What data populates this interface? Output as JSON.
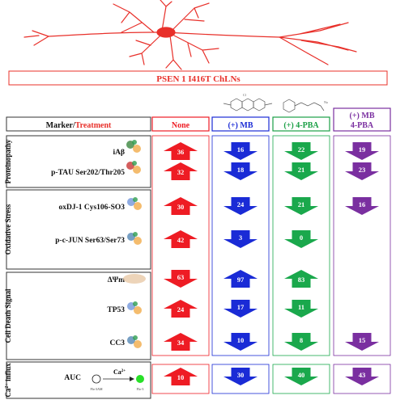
{
  "title": "PSEN 1 I416T ChLNs",
  "header": {
    "marker_label": "Marker/",
    "treatment_label": "Treatment",
    "columns": [
      {
        "label": "None",
        "color": "#ee1c24"
      },
      {
        "label": "(+) MB",
        "color": "#1a2bd6"
      },
      {
        "label": "(+) 4-PBA",
        "color": "#1a9f45"
      },
      {
        "label_line1": "(+) MB",
        "label_line2": "4-PBA",
        "color": "#7a2fa0"
      }
    ]
  },
  "colors": {
    "none": "#ee1c24",
    "mb": "#1a2bd6",
    "pba": "#1aa84c",
    "combo": "#7a2fa0",
    "neuron": "#e8302a"
  },
  "groups": [
    {
      "name": "Proteinopathy"
    },
    {
      "name": "Oxidative Stress"
    },
    {
      "name": "Cell Death Signal"
    },
    {
      "name": "Ca2+ influx",
      "base": "Ca",
      "sup": "2+",
      "rest": " influx"
    }
  ],
  "rows": [
    {
      "marker": "iAβ",
      "group": 0,
      "cells": [
        {
          "value": "36",
          "dir": "up"
        },
        {
          "value": "16",
          "dir": "down"
        },
        {
          "value": "22",
          "dir": "down"
        },
        {
          "value": "19",
          "dir": "down"
        }
      ]
    },
    {
      "marker": "p-TAU Ser202/Thr205",
      "group": 0,
      "cells": [
        {
          "value": "32",
          "dir": "up"
        },
        {
          "value": "18",
          "dir": "down"
        },
        {
          "value": "21",
          "dir": "down"
        },
        {
          "value": "23",
          "dir": "down"
        }
      ]
    },
    {
      "marker": "oxDJ-1 Cys106-SO3",
      "group": 1,
      "cells": [
        {
          "value": "30",
          "dir": "up"
        },
        {
          "value": "24",
          "dir": "down"
        },
        {
          "value": "21",
          "dir": "down"
        },
        {
          "value": "16",
          "dir": "down"
        }
      ]
    },
    {
      "marker": "p-c-JUN Ser63/Ser73",
      "group": 1,
      "cells": [
        {
          "value": "42",
          "dir": "up"
        },
        {
          "value": "3",
          "dir": "down"
        },
        {
          "value": "0",
          "dir": "down"
        },
        null
      ]
    },
    {
      "marker": "ΔΨm",
      "group": 2,
      "cells": [
        {
          "value": "63",
          "dir": "down"
        },
        {
          "value": "97",
          "dir": "up"
        },
        {
          "value": "83",
          "dir": "up"
        },
        null
      ]
    },
    {
      "marker": "TP53",
      "group": 2,
      "cells": [
        {
          "value": "24",
          "dir": "up"
        },
        {
          "value": "17",
          "dir": "down"
        },
        {
          "value": "11",
          "dir": "down"
        },
        null
      ]
    },
    {
      "marker": "CC3",
      "group": 2,
      "cells": [
        {
          "value": "34",
          "dir": "up"
        },
        {
          "value": "10",
          "dir": "down"
        },
        {
          "value": "8",
          "dir": "down"
        },
        {
          "value": "15",
          "dir": "down"
        }
      ]
    },
    {
      "marker": "AUC",
      "group": 3,
      "cells": [
        {
          "value": "10",
          "dir": "up"
        },
        {
          "value": "30",
          "dir": "down"
        },
        {
          "value": "40",
          "dir": "down"
        },
        {
          "value": "43",
          "dir": "down"
        }
      ]
    }
  ],
  "calcium_panel": {
    "ion_base": "Ca",
    "ion_sup": "2+",
    "left_label": "Flo-3AM",
    "right_label": "Flo-3"
  },
  "icons": [
    "neuron-illustration",
    "methylene-blue-structure",
    "4-pba-structure",
    "protein-structure-icon",
    "mitochondrion-icon"
  ]
}
